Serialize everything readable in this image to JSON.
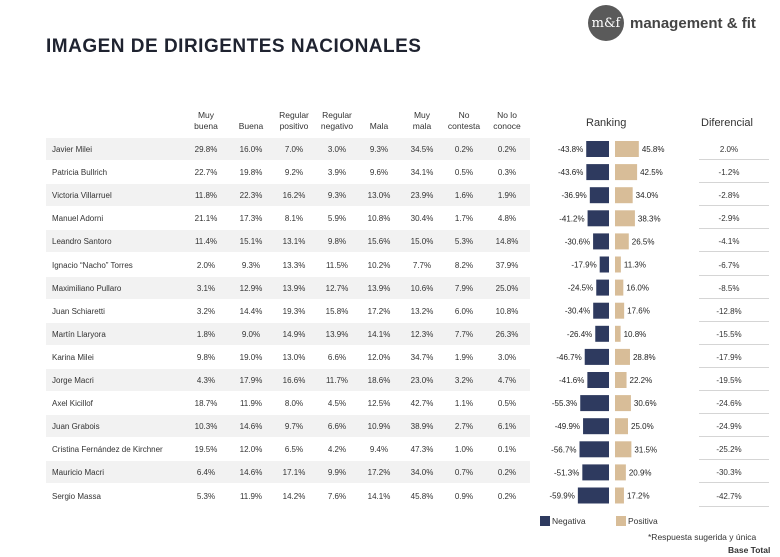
{
  "title": "IMAGEN DE DIRIGENTES NACIONALES",
  "logo": {
    "mark": "m&f",
    "text": "management & fit"
  },
  "columns": [
    {
      "label": "Muy buena",
      "lines": [
        "Muy",
        "buena"
      ]
    },
    {
      "label": "Buena",
      "lines": [
        "Buena"
      ]
    },
    {
      "label": "Regular positivo",
      "lines": [
        "Regular",
        "positivo"
      ]
    },
    {
      "label": "Regular negativo",
      "lines": [
        "Regular",
        "negativo"
      ]
    },
    {
      "label": "Mala",
      "lines": [
        "Mala"
      ]
    },
    {
      "label": "Muy mala",
      "lines": [
        "Muy",
        "mala"
      ]
    },
    {
      "label": "No contesta",
      "lines": [
        "No",
        "contesta"
      ]
    },
    {
      "label": "No lo conoce",
      "lines": [
        "No lo",
        "conoce"
      ]
    }
  ],
  "ranking_label": "Ranking",
  "diferencial_label": "Diferencial",
  "rows": [
    {
      "name": "Javier Milei",
      "values": [
        "29.8%",
        "16.0%",
        "7.0%",
        "3.0%",
        "9.3%",
        "34.5%",
        "0.2%",
        "0.2%"
      ],
      "diferencial": "2.0%"
    },
    {
      "name": "Patricia Bullrich",
      "values": [
        "22.7%",
        "19.8%",
        "9.2%",
        "3.9%",
        "9.6%",
        "34.1%",
        "0.5%",
        "0.3%"
      ],
      "diferencial": "-1.2%"
    },
    {
      "name": "Victoria Villarruel",
      "values": [
        "11.8%",
        "22.3%",
        "16.2%",
        "9.3%",
        "13.0%",
        "23.9%",
        "1.6%",
        "1.9%"
      ],
      "diferencial": "-2.8%"
    },
    {
      "name": "Manuel Adorni",
      "values": [
        "21.1%",
        "17.3%",
        "8.1%",
        "5.9%",
        "10.8%",
        "30.4%",
        "1.7%",
        "4.8%"
      ],
      "diferencial": "-2.9%"
    },
    {
      "name": "Leandro Santoro",
      "values": [
        "11.4%",
        "15.1%",
        "13.1%",
        "9.8%",
        "15.6%",
        "15.0%",
        "5.3%",
        "14.8%"
      ],
      "diferencial": "-4.1%"
    },
    {
      "name": "Ignacio “Nacho” Torres",
      "values": [
        "2.0%",
        "9.3%",
        "13.3%",
        "11.5%",
        "10.2%",
        "7.7%",
        "8.2%",
        "37.9%"
      ],
      "diferencial": "-6.7%"
    },
    {
      "name": "Maximiliano Pullaro",
      "values": [
        "3.1%",
        "12.9%",
        "13.9%",
        "12.7%",
        "13.9%",
        "10.6%",
        "7.9%",
        "25.0%"
      ],
      "diferencial": "-8.5%"
    },
    {
      "name": "Juan Schiaretti",
      "values": [
        "3.2%",
        "14.4%",
        "19.3%",
        "15.8%",
        "17.2%",
        "13.2%",
        "6.0%",
        "10.8%"
      ],
      "diferencial": "-12.8%"
    },
    {
      "name": "Martín Llaryora",
      "values": [
        "1.8%",
        "9.0%",
        "14.9%",
        "13.9%",
        "14.1%",
        "12.3%",
        "7.7%",
        "26.3%"
      ],
      "diferencial": "-15.5%"
    },
    {
      "name": "Karina Milei",
      "values": [
        "9.8%",
        "19.0%",
        "13.0%",
        "6.6%",
        "12.0%",
        "34.7%",
        "1.9%",
        "3.0%"
      ],
      "diferencial": "-17.9%"
    },
    {
      "name": "Jorge Macri",
      "values": [
        "4.3%",
        "17.9%",
        "16.6%",
        "11.7%",
        "18.6%",
        "23.0%",
        "3.2%",
        "4.7%"
      ],
      "diferencial": "-19.5%"
    },
    {
      "name": "Axel Kicillof",
      "values": [
        "18.7%",
        "11.9%",
        "8.0%",
        "4.5%",
        "12.5%",
        "42.7%",
        "1.1%",
        "0.5%"
      ],
      "diferencial": "-24.6%"
    },
    {
      "name": "Juan Grabois",
      "values": [
        "10.3%",
        "14.6%",
        "9.7%",
        "6.6%",
        "10.9%",
        "38.9%",
        "2.7%",
        "6.1%"
      ],
      "diferencial": "-24.9%"
    },
    {
      "name": "Cristina Fernández de Kirchner",
      "values": [
        "19.5%",
        "12.0%",
        "6.5%",
        "4.2%",
        "9.4%",
        "47.3%",
        "1.0%",
        "0.1%"
      ],
      "diferencial": "-25.2%"
    },
    {
      "name": "Mauricio Macri",
      "values": [
        "6.4%",
        "14.6%",
        "17.1%",
        "9.9%",
        "17.2%",
        "34.0%",
        "0.7%",
        "0.2%"
      ],
      "diferencial": "-30.3%"
    },
    {
      "name": "Sergio Massa",
      "values": [
        "5.3%",
        "11.9%",
        "14.2%",
        "7.6%",
        "14.1%",
        "45.8%",
        "0.9%",
        "0.2%"
      ],
      "diferencial": "-42.7%"
    }
  ],
  "legend": {
    "negativa": "Negativa",
    "positiva": "Positiva"
  },
  "colors": {
    "negativa": "#2e3a5f",
    "positiva": "#d8bd98",
    "row_alt": "#f2f2f2"
  },
  "footnote": "*Respuesta sugerida y única",
  "base": "Base Total",
  "chart_data": {
    "type": "bar",
    "categories": [
      "Javier Milei",
      "Patricia Bullrich",
      "Victoria Villarruel",
      "Manuel Adorni",
      "Leandro Santoro",
      "Ignacio “Nacho” Torres",
      "Maximiliano Pullaro",
      "Juan Schiaretti",
      "Martín Llaryora",
      "Karina Milei",
      "Jorge Macri",
      "Axel Kicillof",
      "Juan Grabois",
      "Cristina Fernández de Kirchner",
      "Mauricio Macri",
      "Sergio Massa"
    ],
    "series": [
      {
        "name": "Negativa",
        "values": [
          -43.8,
          -43.6,
          -36.9,
          -41.2,
          -30.6,
          -17.9,
          -24.5,
          -30.4,
          -26.4,
          -46.7,
          -41.6,
          -55.3,
          -49.9,
          -56.7,
          -51.3,
          -59.9
        ],
        "labels": [
          "-43.8%",
          "-43.6%",
          "-36.9%",
          "-41.2%",
          "-30.6%",
          "-17.9%",
          "-24.5%",
          "-30.4%",
          "-26.4%",
          "-46.7%",
          "-41.6%",
          "-55.3%",
          "-49.9%",
          "-56.7%",
          "-51.3%",
          "-59.9%"
        ]
      },
      {
        "name": "Positiva",
        "values": [
          45.8,
          42.5,
          34.0,
          38.3,
          26.5,
          11.3,
          16.0,
          17.6,
          10.8,
          28.8,
          22.2,
          30.6,
          25.0,
          31.5,
          20.9,
          17.2
        ],
        "labels": [
          "45.8%",
          "42.5%",
          "34.0%",
          "38.3%",
          "26.5%",
          "11.3%",
          "16.0%",
          "17.6%",
          "10.8%",
          "28.8%",
          "22.2%",
          "30.6%",
          "25.0%",
          "31.5%",
          "20.9%",
          "17.2%"
        ]
      }
    ],
    "title": "Ranking",
    "legend_position": "bottom"
  }
}
